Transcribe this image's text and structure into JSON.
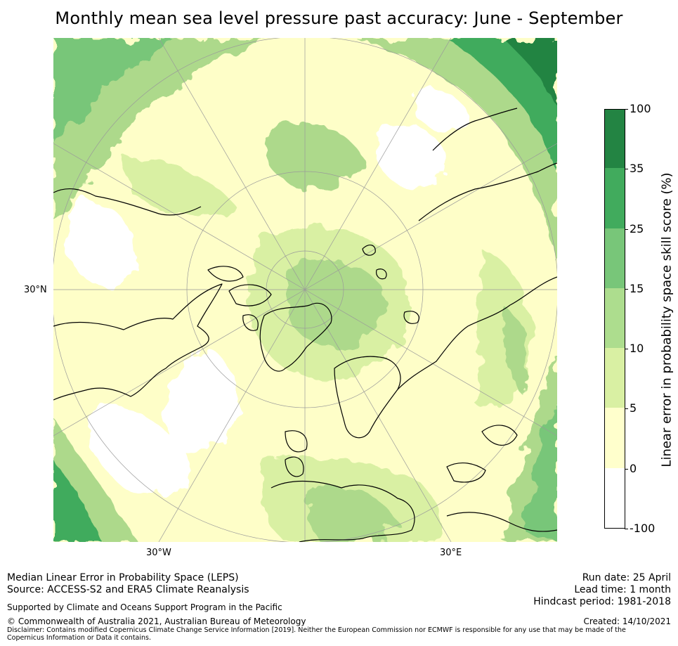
{
  "title": "Monthly mean sea level pressure past accuracy: June - September",
  "map": {
    "projection": "north-polar-stereographic",
    "lat_labels": [
      "30°N"
    ],
    "lon_labels": [
      "30°W",
      "30°E"
    ],
    "coastline_color": "#000000",
    "graticule_color": "#9a9a9a"
  },
  "colorbar": {
    "title": "Linear error in probability space skill score (%)",
    "bins": [
      {
        "from": "-100",
        "to": "0",
        "color": "#ffffff"
      },
      {
        "from": "0",
        "to": "5",
        "color": "#ffffcc"
      },
      {
        "from": "5",
        "to": "10",
        "color": "#d9f0a3"
      },
      {
        "from": "10",
        "to": "15",
        "color": "#addd8e"
      },
      {
        "from": "15",
        "to": "25",
        "color": "#78c679"
      },
      {
        "from": "25",
        "to": "35",
        "color": "#41ab5d"
      },
      {
        "from": "35",
        "to": "100",
        "color": "#238443"
      }
    ],
    "tick_labels": [
      "100",
      "35",
      "25",
      "15",
      "10",
      "5",
      "0",
      "-100"
    ]
  },
  "footer": {
    "line1": "Median Linear Error in Probability Space (LEPS)",
    "line2": "Source: ACCESS-S2 and ERA5 Climate Reanalysis",
    "support": "Supported by Climate and Oceans Support Program in the Pacific",
    "copyright": "© Commonwealth of Australia 2021, Australian Bureau of Meteorology",
    "disclaimer": "Disclaimer: Contains modified Copernicus Climate Change Service Information [2019]. Neither the European Commission nor ECMWF is responsible for any use that may be made of the Copernicus Information or Data it contains.",
    "run_date": "Run date: 25 April",
    "lead_time": "Lead time: 1 month",
    "hindcast": "Hindcast period: 1981-2018",
    "created": "Created: 14/10/2021"
  }
}
